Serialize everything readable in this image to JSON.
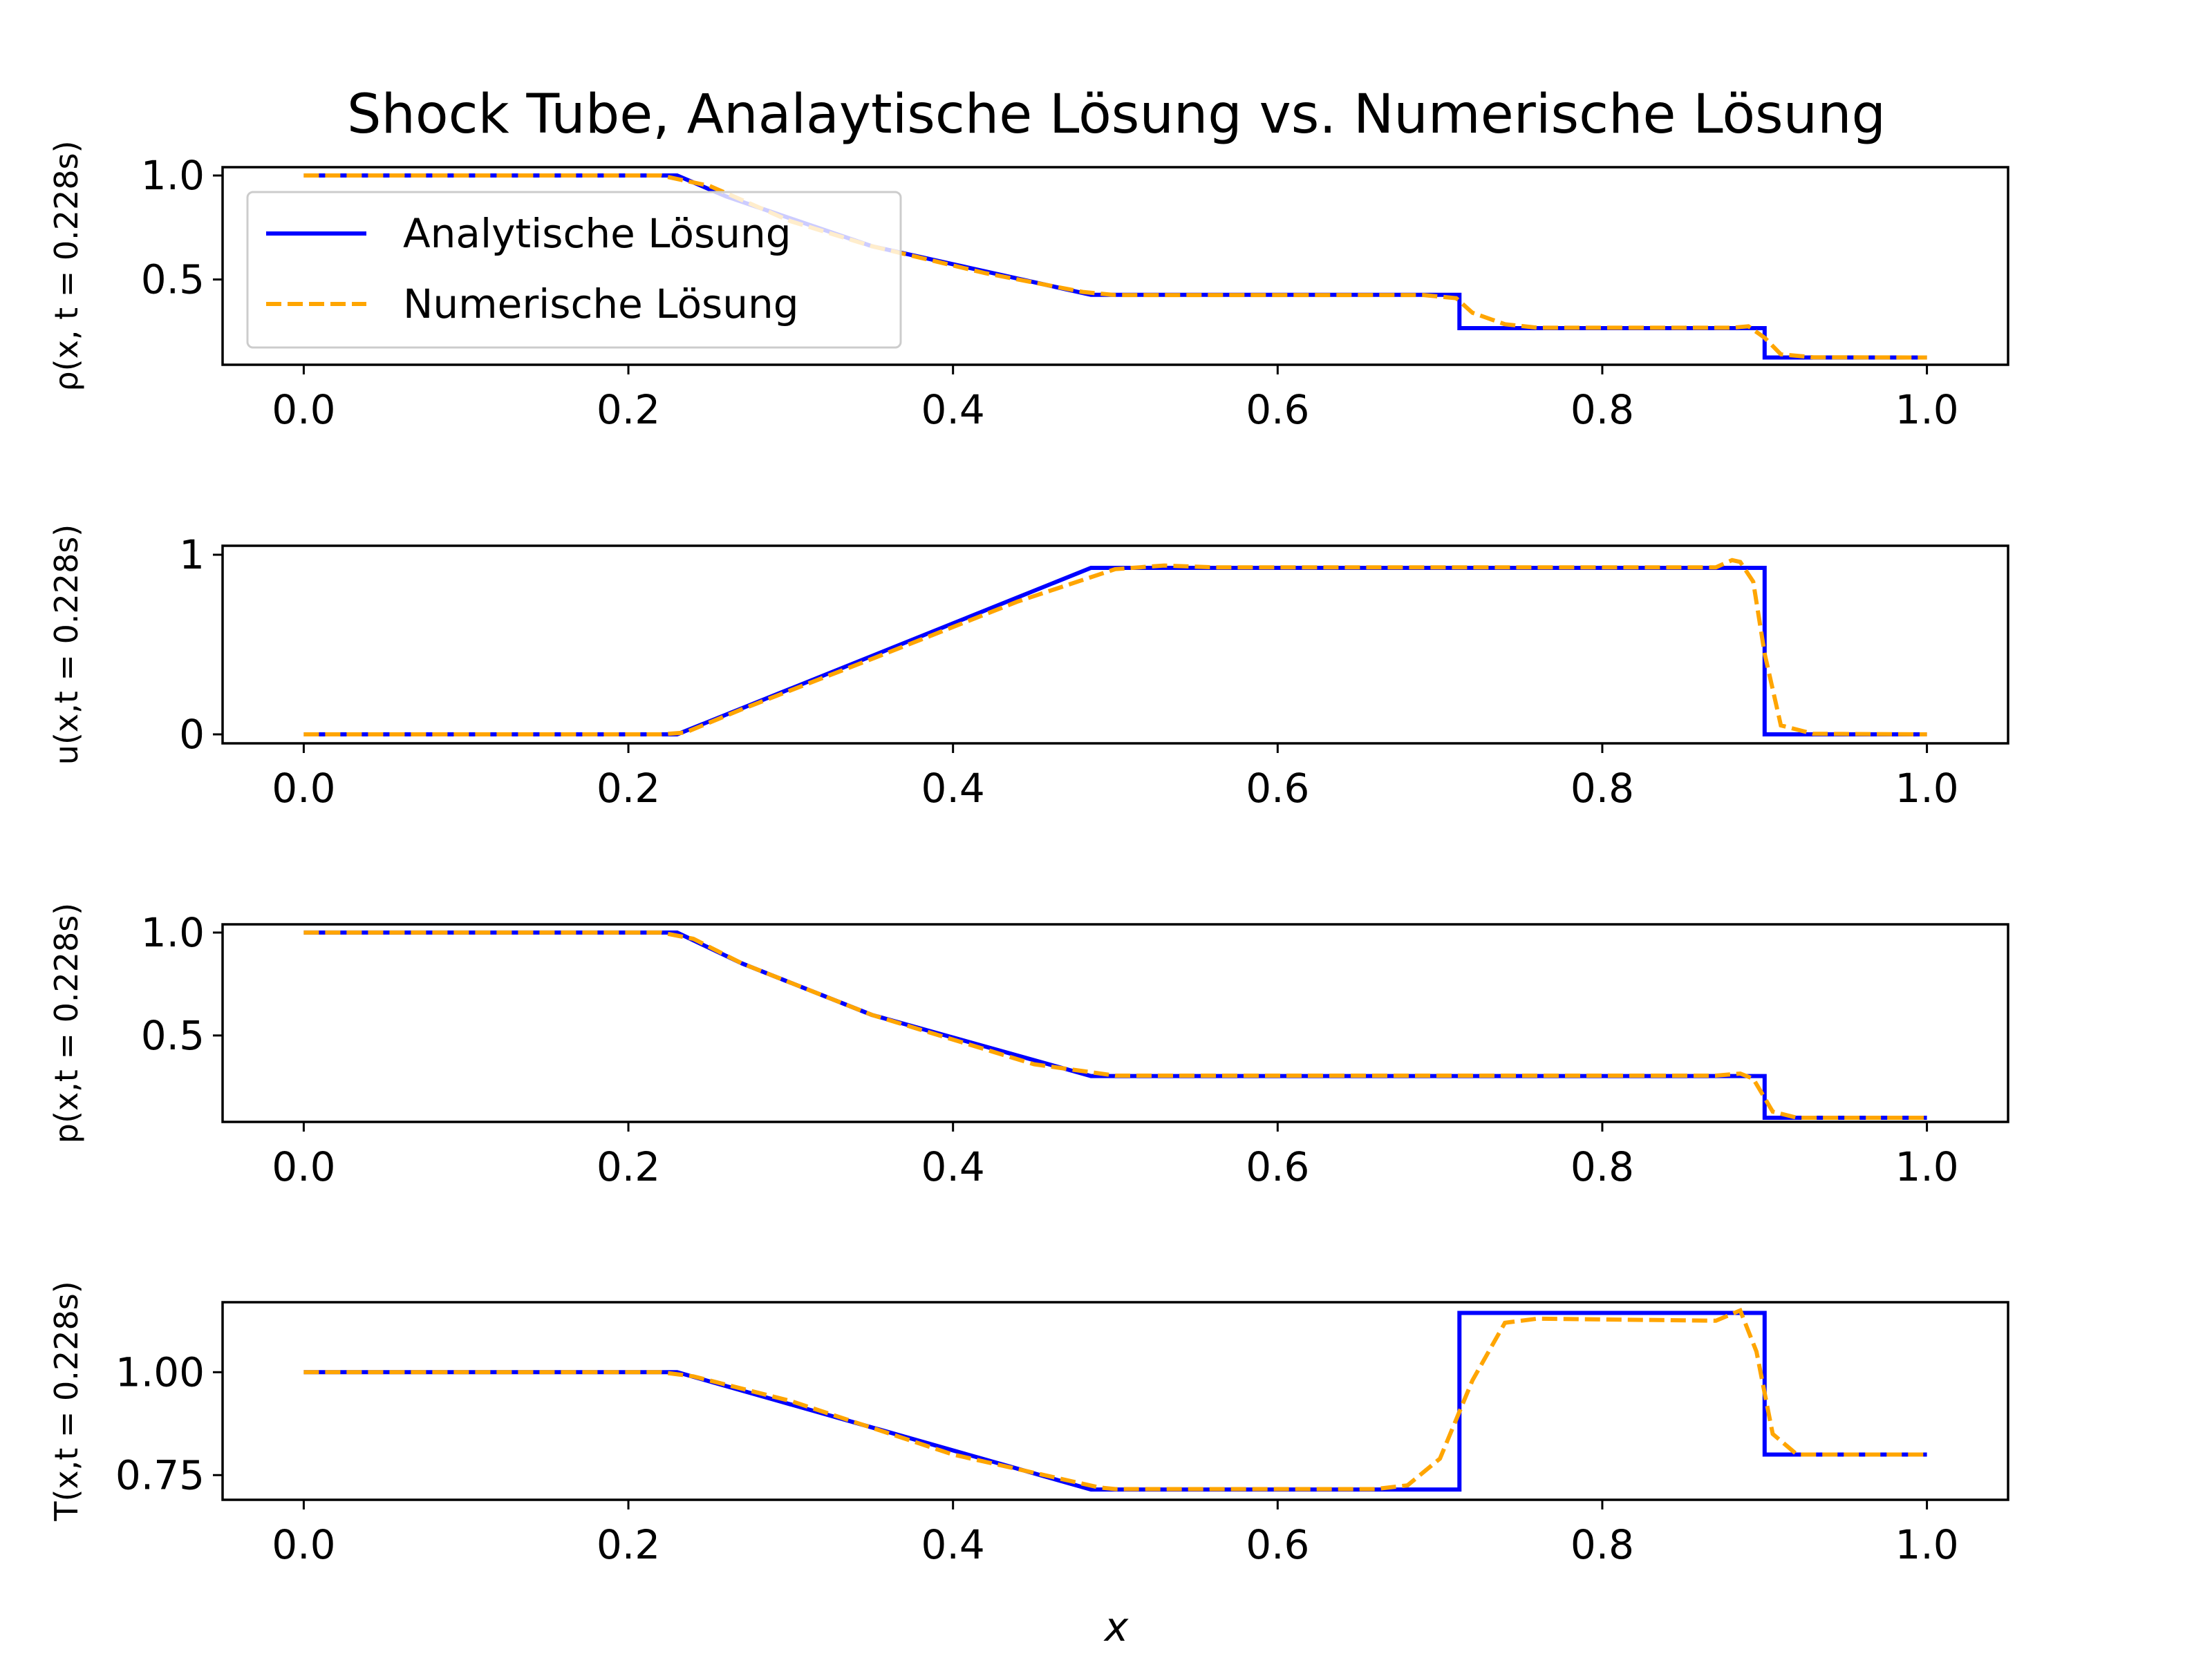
{
  "chart_data": {
    "type": "line",
    "title": "Shock Tube, Analaytische Lösung vs. Numerische Lösung",
    "xlabel": "x",
    "legend": {
      "placement": "upper-left of first subplot",
      "entries": [
        {
          "label": "Analytische Lösung",
          "color": "#0000ff",
          "style": "solid"
        },
        {
          "label": "Numerische Lösung",
          "color": "#ffa500",
          "style": "dashed"
        }
      ]
    },
    "xticks": [
      "0.0",
      "0.2",
      "0.4",
      "0.6",
      "0.8",
      "1.0"
    ],
    "xlim": [
      -0.05,
      1.05
    ],
    "subplots": [
      {
        "ylabel": "ρ(x, t = 0.228s)",
        "ylim": [
          0.09,
          1.04
        ],
        "yticks": [
          {
            "v": 1.0,
            "label": "1.0"
          },
          {
            "v": 0.5,
            "label": "0.5"
          }
        ],
        "series": [
          {
            "name": "Analytische Lösung",
            "points": [
              [
                0,
                1.0
              ],
              [
                0.23,
                1.0
              ],
              [
                0.26,
                0.9
              ],
              [
                0.35,
                0.66
              ],
              [
                0.485,
                0.426
              ],
              [
                0.712,
                0.426
              ],
              [
                0.712,
                0.266
              ],
              [
                0.9,
                0.266
              ],
              [
                0.9,
                0.125
              ],
              [
                1.0,
                0.125
              ]
            ]
          },
          {
            "name": "Numerische Lösung",
            "points": [
              [
                0,
                1.0
              ],
              [
                0.22,
                1.0
              ],
              [
                0.25,
                0.95
              ],
              [
                0.3,
                0.78
              ],
              [
                0.35,
                0.66
              ],
              [
                0.42,
                0.53
              ],
              [
                0.48,
                0.44
              ],
              [
                0.5,
                0.425
              ],
              [
                0.69,
                0.425
              ],
              [
                0.71,
                0.41
              ],
              [
                0.72,
                0.34
              ],
              [
                0.74,
                0.285
              ],
              [
                0.76,
                0.268
              ],
              [
                0.88,
                0.268
              ],
              [
                0.89,
                0.275
              ],
              [
                0.9,
                0.22
              ],
              [
                0.91,
                0.14
              ],
              [
                0.93,
                0.126
              ],
              [
                1.0,
                0.125
              ]
            ]
          }
        ]
      },
      {
        "ylabel": "u(x,t = 0.228s)",
        "ylim": [
          -0.05,
          1.05
        ],
        "yticks": [
          {
            "v": 1,
            "label": "1"
          },
          {
            "v": 0,
            "label": "0"
          }
        ],
        "series": [
          {
            "name": "Analytische Lösung",
            "points": [
              [
                0,
                0
              ],
              [
                0.23,
                0
              ],
              [
                0.485,
                0.927
              ],
              [
                0.9,
                0.927
              ],
              [
                0.9,
                0
              ],
              [
                1.0,
                0
              ]
            ]
          },
          {
            "name": "Numerische Lösung",
            "points": [
              [
                0,
                0
              ],
              [
                0.22,
                0
              ],
              [
                0.235,
                0.01
              ],
              [
                0.27,
                0.14
              ],
              [
                0.35,
                0.42
              ],
              [
                0.44,
                0.74
              ],
              [
                0.5,
                0.92
              ],
              [
                0.53,
                0.94
              ],
              [
                0.56,
                0.93
              ],
              [
                0.87,
                0.93
              ],
              [
                0.88,
                0.97
              ],
              [
                0.885,
                0.96
              ],
              [
                0.893,
                0.85
              ],
              [
                0.9,
                0.45
              ],
              [
                0.91,
                0.05
              ],
              [
                0.93,
                0.003
              ],
              [
                1.0,
                0
              ]
            ]
          }
        ]
      },
      {
        "ylabel": "p(x,t = 0.228s)",
        "ylim": [
          0.08,
          1.04
        ],
        "yticks": [
          {
            "v": 1.0,
            "label": "1.0"
          },
          {
            "v": 0.5,
            "label": "0.5"
          }
        ],
        "series": [
          {
            "name": "Analytische Lösung",
            "points": [
              [
                0,
                1.0
              ],
              [
                0.23,
                1.0
              ],
              [
                0.27,
                0.85
              ],
              [
                0.35,
                0.6
              ],
              [
                0.485,
                0.303
              ],
              [
                0.9,
                0.303
              ],
              [
                0.9,
                0.1
              ],
              [
                1.0,
                0.1
              ]
            ]
          },
          {
            "name": "Numerische Lösung",
            "points": [
              [
                0,
                1.0
              ],
              [
                0.22,
                1.0
              ],
              [
                0.24,
                0.97
              ],
              [
                0.27,
                0.85
              ],
              [
                0.35,
                0.6
              ],
              [
                0.45,
                0.36
              ],
              [
                0.5,
                0.305
              ],
              [
                0.87,
                0.305
              ],
              [
                0.885,
                0.315
              ],
              [
                0.893,
                0.29
              ],
              [
                0.905,
                0.13
              ],
              [
                0.92,
                0.1
              ],
              [
                1.0,
                0.1
              ]
            ]
          }
        ]
      },
      {
        "ylabel": "T(x,t = 0.228s)",
        "ylim": [
          0.69,
          1.17
        ],
        "yticks": [
          {
            "v": 1.0,
            "label": "1.00"
          },
          {
            "v": 0.75,
            "label": "0.75"
          }
        ],
        "series": [
          {
            "name": "Analytische Lösung",
            "points": [
              [
                0,
                1.0
              ],
              [
                0.23,
                1.0
              ],
              [
                0.485,
                0.715
              ],
              [
                0.712,
                0.715
              ],
              [
                0.712,
                1.144
              ],
              [
                0.9,
                1.144
              ],
              [
                0.9,
                0.8
              ],
              [
                1.0,
                0.8
              ]
            ]
          },
          {
            "name": "Numerische Lösung",
            "points": [
              [
                0,
                1.0
              ],
              [
                0.22,
                1.0
              ],
              [
                0.24,
                0.99
              ],
              [
                0.3,
                0.93
              ],
              [
                0.4,
                0.8
              ],
              [
                0.49,
                0.72
              ],
              [
                0.5,
                0.716
              ],
              [
                0.66,
                0.716
              ],
              [
                0.68,
                0.725
              ],
              [
                0.7,
                0.79
              ],
              [
                0.72,
                0.98
              ],
              [
                0.74,
                1.12
              ],
              [
                0.76,
                1.13
              ],
              [
                0.87,
                1.125
              ],
              [
                0.885,
                1.15
              ],
              [
                0.895,
                1.05
              ],
              [
                0.905,
                0.85
              ],
              [
                0.92,
                0.8
              ],
              [
                1.0,
                0.8
              ]
            ]
          }
        ]
      }
    ]
  }
}
